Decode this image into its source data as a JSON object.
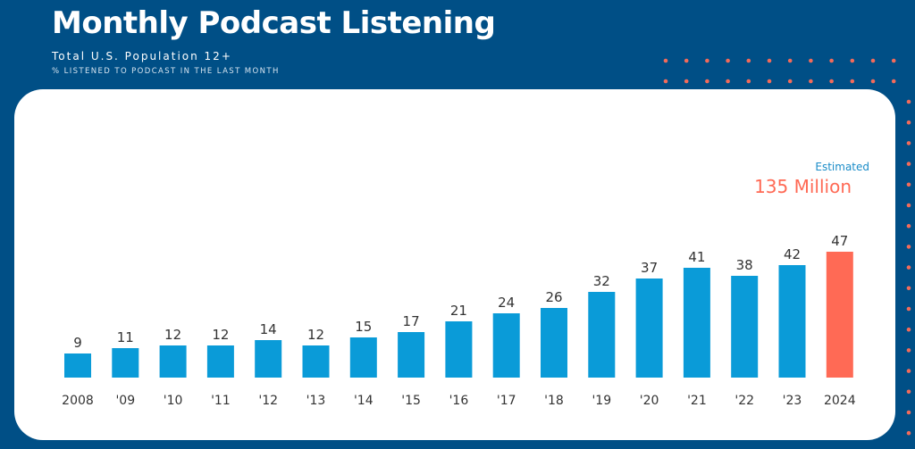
{
  "chart_data": {
    "type": "bar",
    "title": "Monthly Podcast Listening",
    "subtitle": "Total U.S. Population 12+",
    "subtitle2": "% LISTENED TO PODCAST IN THE LAST MONTH",
    "categories": [
      "2008",
      "'09",
      "'10",
      "'11",
      "'12",
      "'13",
      "'14",
      "'15",
      "'16",
      "'17",
      "'18",
      "'19",
      "'20",
      "'21",
      "'22",
      "'23",
      "2024"
    ],
    "values": [
      9,
      11,
      12,
      12,
      14,
      12,
      15,
      17,
      21,
      24,
      26,
      32,
      37,
      41,
      38,
      42,
      47
    ],
    "ylim": [
      0,
      47
    ],
    "highlight_index": 16,
    "annotation": {
      "small": "Estimated",
      "big": "135 Million"
    },
    "colors": {
      "bar": "#0a9bd8",
      "highlight": "#ff6a55",
      "background": "#004f86",
      "dots": "#f26b5b",
      "label": "#333333"
    }
  }
}
